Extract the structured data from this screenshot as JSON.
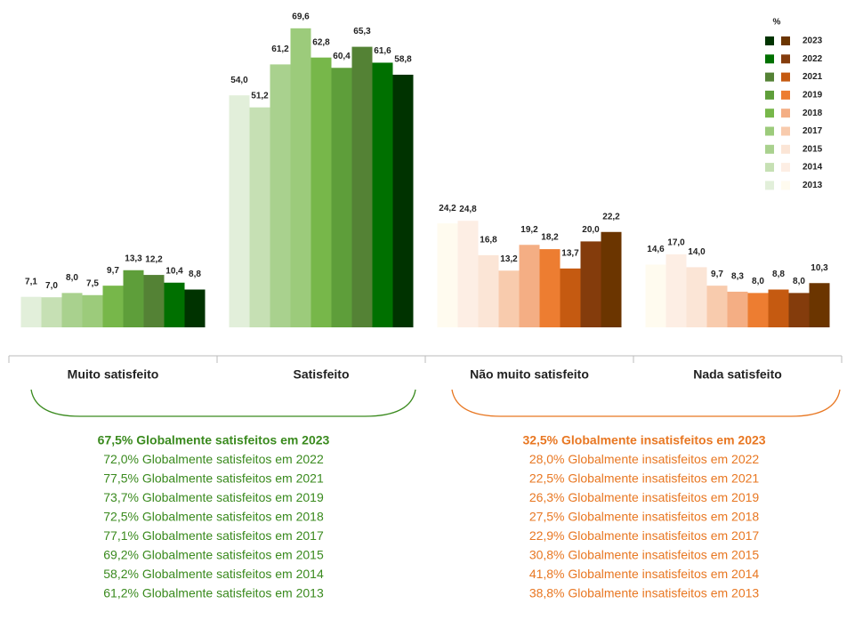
{
  "chart_data": {
    "type": "bar",
    "categories": [
      "Muito satisfeito",
      "Satisfeito",
      "Não muito satisfeito",
      "Nada satisfeito"
    ],
    "category_palette": [
      0,
      0,
      1,
      1
    ],
    "legend_title": "%",
    "series": [
      {
        "name": "2013",
        "colors": [
          "#e2efda",
          "#fffbef"
        ],
        "values": [
          7.1,
          54.0,
          24.2,
          14.6
        ],
        "value_labels": [
          "7,1",
          "54,0",
          "24,2",
          "14,6"
        ]
      },
      {
        "name": "2014",
        "colors": [
          "#c6e0b4",
          "#fdeee4"
        ],
        "values": [
          7.0,
          51.2,
          24.8,
          17.0
        ],
        "value_labels": [
          "7,0",
          "51,2",
          "24,8",
          "17,0"
        ]
      },
      {
        "name": "2015",
        "colors": [
          "#a9d18e",
          "#fbe5d6"
        ],
        "values": [
          8.0,
          61.2,
          16.8,
          14.0
        ],
        "value_labels": [
          "8,0",
          "61,2",
          "16,8",
          "14,0"
        ]
      },
      {
        "name": "2017",
        "colors": [
          "#9ccb7b",
          "#f8cbad"
        ],
        "values": [
          7.5,
          69.6,
          13.2,
          9.7
        ],
        "value_labels": [
          "7,5",
          "69,6",
          "13,2",
          "9,7"
        ]
      },
      {
        "name": "2018",
        "colors": [
          "#77b74a",
          "#f4ae84"
        ],
        "values": [
          9.7,
          62.8,
          19.2,
          8.3
        ],
        "value_labels": [
          "9,7",
          "62,8",
          "19,2",
          "8,3"
        ]
      },
      {
        "name": "2019",
        "colors": [
          "#5e9e3a",
          "#ed7d31"
        ],
        "values": [
          13.3,
          60.4,
          18.2,
          8.0
        ],
        "value_labels": [
          "13,3",
          "60,4",
          "18,2",
          "8,0"
        ]
      },
      {
        "name": "2021",
        "colors": [
          "#548235",
          "#c55a11"
        ],
        "values": [
          12.2,
          65.3,
          13.7,
          8.8
        ],
        "value_labels": [
          "12,2",
          "65,3",
          "13,7",
          "8,8"
        ]
      },
      {
        "name": "2022",
        "colors": [
          "#007000",
          "#843c0c"
        ],
        "values": [
          10.4,
          61.6,
          20.0,
          8.0
        ],
        "value_labels": [
          "10,4",
          "61,6",
          "20,0",
          "8,0"
        ]
      },
      {
        "name": "2023",
        "colors": [
          "#003300",
          "#6b3500"
        ],
        "values": [
          8.8,
          58.8,
          22.2,
          10.3
        ],
        "value_labels": [
          "8,8",
          "58,8",
          "22,2",
          "10,3"
        ]
      }
    ],
    "annotations": {
      "satisfied": [
        "67,5% Globalmente satisfeitos em 2023",
        "72,0% Globalmente satisfeitos em 2022",
        "77,5% Globalmente satisfeitos em 2021",
        "73,7% Globalmente satisfeitos em 2019",
        "72,5% Globalmente satisfeitos em 2018",
        "77,1% Globalmente satisfeitos em 2017",
        "69,2% Globalmente satisfeitos em 2015",
        "58,2% Globalmente satisfeitos em 2014",
        "61,2% Globalmente satisfeitos em 2013"
      ],
      "satisfied_color": "#3a8a1e",
      "unsatisfied": [
        "32,5% Globalmente insatisfeitos em 2023",
        "28,0% Globalmente insatisfeitos em 2022",
        "22,5% Globalmente insatisfeitos em 2021",
        "26,3% Globalmente insatisfeitos em 2019",
        "27,5% Globalmente insatisfeitos em 2018",
        "22,9% Globalmente insatisfeitos em 2017",
        "30,8% Globalmente insatisfeitos em 2015",
        "41,8% Globalmente insatisfeitos em 2014",
        "38,8% Globalmente insatisfeitos em 2013"
      ],
      "unsatisfied_color": "#e87722"
    }
  }
}
